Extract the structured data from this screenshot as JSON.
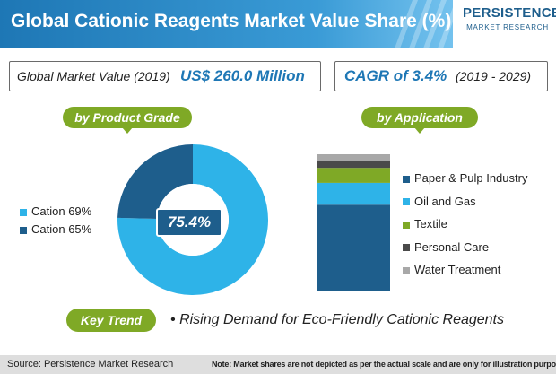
{
  "header": {
    "title": "Global Cationic Reagents Market Value Share (%)"
  },
  "logo": {
    "name": "PERSISTENCE",
    "sub": "MARKET RESEARCH"
  },
  "market_value": {
    "label": "Global Market Value (2019)",
    "value": "US$ 260.0 Million"
  },
  "cagr": {
    "value": "CAGR of 3.4%",
    "period": "(2019 - 2029)"
  },
  "sections": {
    "product_grade": "by Product Grade",
    "application": "by Application"
  },
  "key_trend": {
    "label": "Key Trend",
    "bullet": "•",
    "text": "Rising Demand for Eco-Friendly Cationic Reagents"
  },
  "footer": {
    "source": "Source: Persistence Market Research",
    "note": "Note: Market shares are not depicted as per the actual scale and are only for illustration purposes"
  },
  "colors": {
    "light_blue": "#2eb3e8",
    "dark_blue": "#1e5e8c",
    "green": "#7fa926",
    "dark_gray": "#4a4a4a",
    "light_gray": "#a8a8a8"
  },
  "chart_data": [
    {
      "type": "pie",
      "center_label": "75.4%",
      "categories": [
        "Cation 69%",
        "Cation 65%"
      ],
      "values": [
        75.4,
        24.6
      ],
      "colors": [
        "#2eb3e8",
        "#1e5e8c"
      ],
      "legend_position": "left"
    },
    {
      "type": "bar",
      "stacked": true,
      "categories": [
        "Paper & Pulp Industry",
        "Oil and Gas",
        "Textile",
        "Personal Care",
        "Water Treatment"
      ],
      "values": [
        63,
        16,
        11,
        5,
        5
      ],
      "colors": [
        "#1e5e8c",
        "#2eb3e8",
        "#7fa926",
        "#4a4a4a",
        "#a8a8a8"
      ],
      "legend_position": "right"
    }
  ]
}
